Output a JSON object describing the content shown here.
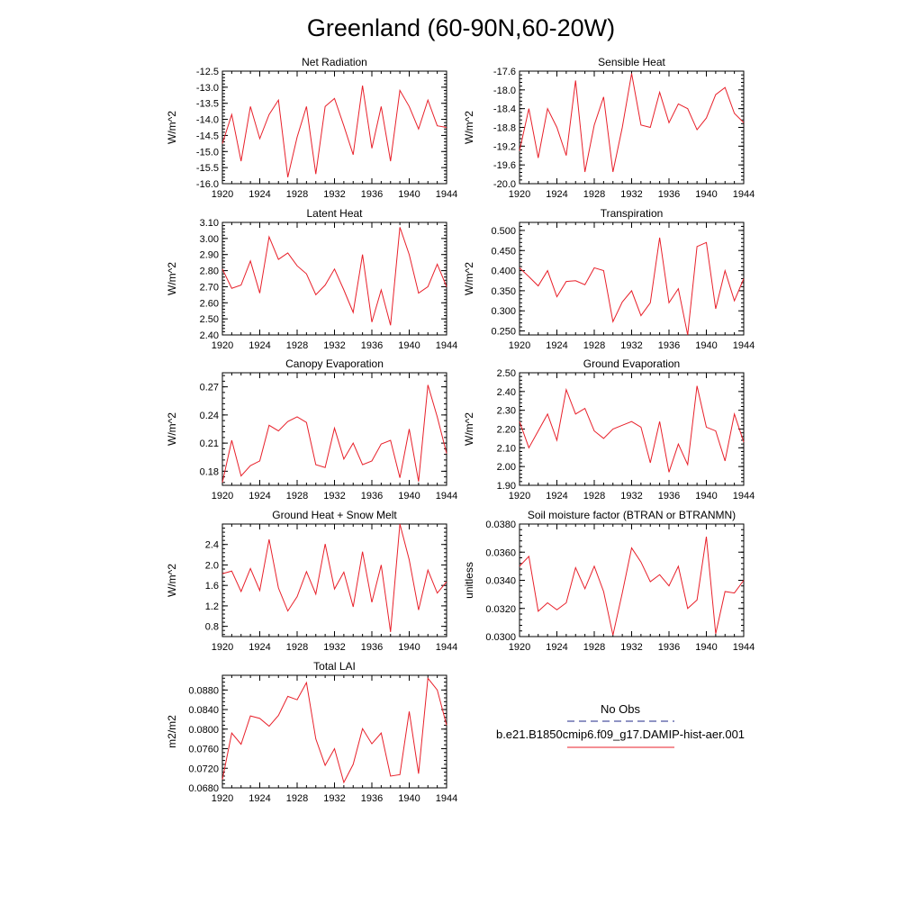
{
  "figure": {
    "title": "Greenland (60-90N,60-20W)"
  },
  "legend": {
    "entries": [
      {
        "label": "No Obs",
        "color": "#1f2a8a",
        "dash": true
      },
      {
        "label": "b.e21.B1850cmip6.f09_g17.DAMIP-hist-aer.001",
        "color": "#e8202a",
        "dash": false
      }
    ]
  },
  "chart_data": [
    {
      "type": "line",
      "title": "Net Radiation",
      "ylabel": "W/m^2",
      "xlim": [
        1920,
        1944
      ],
      "ylim": [
        -16.0,
        -12.5
      ],
      "xticks": [
        1920,
        1924,
        1928,
        1932,
        1936,
        1940,
        1944
      ],
      "yticks": [
        -16.0,
        -15.5,
        -15.0,
        -14.5,
        -14.0,
        -13.5,
        -13.0,
        -12.5
      ],
      "ytick_labels": [
        "-16.0",
        "-15.5",
        "-15.0",
        "-14.5",
        "-14.0",
        "-13.5",
        "-13.0",
        "-12.5"
      ],
      "series": [
        {
          "color": "#e8202a",
          "x": [
            1920,
            1921,
            1922,
            1923,
            1924,
            1925,
            1926,
            1927,
            1928,
            1929,
            1930,
            1931,
            1932,
            1933,
            1934,
            1935,
            1936,
            1937,
            1938,
            1939,
            1940,
            1941,
            1942,
            1943,
            1944
          ],
          "values": [
            -14.75,
            -13.85,
            -15.3,
            -13.6,
            -14.6,
            -13.85,
            -13.4,
            -15.8,
            -14.55,
            -13.6,
            -15.7,
            -13.6,
            -13.35,
            -14.2,
            -15.1,
            -12.95,
            -14.9,
            -13.6,
            -15.3,
            -13.1,
            -13.6,
            -14.3,
            -13.4,
            -14.2,
            -14.25
          ]
        }
      ]
    },
    {
      "type": "line",
      "title": "Sensible Heat",
      "ylabel": "W/m^2",
      "xlim": [
        1920,
        1944
      ],
      "ylim": [
        -20.0,
        -17.6
      ],
      "xticks": [
        1920,
        1924,
        1928,
        1932,
        1936,
        1940,
        1944
      ],
      "yticks": [
        -20.0,
        -19.6,
        -19.2,
        -18.8,
        -18.4,
        -18.0,
        -17.6
      ],
      "ytick_labels": [
        "-20.0",
        "-19.6",
        "-19.2",
        "-18.8",
        "-18.4",
        "-18.0",
        "-17.6"
      ],
      "series": [
        {
          "color": "#e8202a",
          "x": [
            1920,
            1921,
            1922,
            1923,
            1924,
            1925,
            1926,
            1927,
            1928,
            1929,
            1930,
            1931,
            1932,
            1933,
            1934,
            1935,
            1936,
            1937,
            1938,
            1939,
            1940,
            1941,
            1942,
            1943,
            1944
          ],
          "values": [
            -19.3,
            -18.4,
            -19.45,
            -18.4,
            -18.8,
            -19.4,
            -17.8,
            -19.75,
            -18.75,
            -18.15,
            -19.75,
            -18.8,
            -17.65,
            -18.75,
            -18.8,
            -18.05,
            -18.7,
            -18.3,
            -18.4,
            -18.85,
            -18.6,
            -18.1,
            -17.95,
            -18.5,
            -18.7
          ]
        }
      ]
    },
    {
      "type": "line",
      "title": "Latent Heat",
      "ylabel": "W/m^2",
      "xlim": [
        1920,
        1944
      ],
      "ylim": [
        2.4,
        3.1
      ],
      "xticks": [
        1920,
        1924,
        1928,
        1932,
        1936,
        1940,
        1944
      ],
      "yticks": [
        2.4,
        2.5,
        2.6,
        2.7,
        2.8,
        2.9,
        3.0,
        3.1
      ],
      "ytick_labels": [
        "2.40",
        "2.50",
        "2.60",
        "2.70",
        "2.80",
        "2.90",
        "3.00",
        "3.10"
      ],
      "series": [
        {
          "color": "#e8202a",
          "x": [
            1920,
            1921,
            1922,
            1923,
            1924,
            1925,
            1926,
            1927,
            1928,
            1929,
            1930,
            1931,
            1932,
            1933,
            1934,
            1935,
            1936,
            1937,
            1938,
            1939,
            1940,
            1941,
            1942,
            1943,
            1944
          ],
          "values": [
            2.81,
            2.69,
            2.71,
            2.86,
            2.66,
            3.01,
            2.87,
            2.91,
            2.83,
            2.78,
            2.65,
            2.71,
            2.81,
            2.68,
            2.54,
            2.9,
            2.48,
            2.68,
            2.46,
            3.07,
            2.9,
            2.66,
            2.7,
            2.84,
            2.7
          ]
        }
      ]
    },
    {
      "type": "line",
      "title": "Transpiration",
      "ylabel": "W/m^2",
      "xlim": [
        1920,
        1944
      ],
      "ylim": [
        0.24,
        0.52
      ],
      "xticks": [
        1920,
        1924,
        1928,
        1932,
        1936,
        1940,
        1944
      ],
      "yticks": [
        0.25,
        0.3,
        0.35,
        0.4,
        0.45,
        0.5
      ],
      "ytick_labels": [
        "0.250",
        "0.300",
        "0.350",
        "0.400",
        "0.450",
        "0.500"
      ],
      "series": [
        {
          "color": "#e8202a",
          "x": [
            1920,
            1921,
            1922,
            1923,
            1924,
            1925,
            1926,
            1927,
            1928,
            1929,
            1930,
            1931,
            1932,
            1933,
            1934,
            1935,
            1936,
            1937,
            1938,
            1939,
            1940,
            1941,
            1942,
            1943,
            1944
          ],
          "values": [
            0.407,
            0.385,
            0.362,
            0.4,
            0.335,
            0.373,
            0.375,
            0.365,
            0.407,
            0.4,
            0.273,
            0.322,
            0.35,
            0.288,
            0.32,
            0.482,
            0.32,
            0.355,
            0.24,
            0.46,
            0.47,
            0.305,
            0.4,
            0.325,
            0.38
          ]
        }
      ]
    },
    {
      "type": "line",
      "title": "Canopy Evaporation",
      "ylabel": "W/m^2",
      "xlim": [
        1920,
        1944
      ],
      "ylim": [
        0.165,
        0.285
      ],
      "xticks": [
        1920,
        1924,
        1928,
        1932,
        1936,
        1940,
        1944
      ],
      "yticks": [
        0.18,
        0.21,
        0.24,
        0.27
      ],
      "ytick_labels": [
        "0.18",
        "0.21",
        "0.24",
        "0.27"
      ],
      "series": [
        {
          "color": "#e8202a",
          "x": [
            1920,
            1921,
            1922,
            1923,
            1924,
            1925,
            1926,
            1927,
            1928,
            1929,
            1930,
            1931,
            1932,
            1933,
            1934,
            1935,
            1936,
            1937,
            1938,
            1939,
            1940,
            1941,
            1942,
            1943,
            1944
          ],
          "values": [
            0.168,
            0.213,
            0.175,
            0.186,
            0.191,
            0.229,
            0.223,
            0.233,
            0.238,
            0.232,
            0.187,
            0.184,
            0.226,
            0.193,
            0.21,
            0.187,
            0.191,
            0.209,
            0.213,
            0.173,
            0.225,
            0.169,
            0.272,
            0.238,
            0.199
          ]
        }
      ]
    },
    {
      "type": "line",
      "title": "Ground Evaporation",
      "ylabel": "W/m^2",
      "xlim": [
        1920,
        1944
      ],
      "ylim": [
        1.9,
        2.5
      ],
      "xticks": [
        1920,
        1924,
        1928,
        1932,
        1936,
        1940,
        1944
      ],
      "yticks": [
        1.9,
        2.0,
        2.1,
        2.2,
        2.3,
        2.4,
        2.5
      ],
      "ytick_labels": [
        "1.90",
        "2.00",
        "2.10",
        "2.20",
        "2.30",
        "2.40",
        "2.50"
      ],
      "series": [
        {
          "color": "#e8202a",
          "x": [
            1920,
            1921,
            1922,
            1923,
            1924,
            1925,
            1926,
            1927,
            1928,
            1929,
            1930,
            1931,
            1932,
            1933,
            1934,
            1935,
            1936,
            1937,
            1938,
            1939,
            1940,
            1941,
            1942,
            1943,
            1944
          ],
          "values": [
            2.24,
            2.1,
            2.19,
            2.28,
            2.14,
            2.41,
            2.28,
            2.31,
            2.19,
            2.15,
            2.2,
            2.22,
            2.24,
            2.21,
            2.02,
            2.24,
            1.97,
            2.12,
            2.01,
            2.43,
            2.21,
            2.19,
            2.03,
            2.28,
            2.13
          ]
        }
      ]
    },
    {
      "type": "line",
      "title": "Ground Heat + Snow Melt",
      "ylabel": "W/m^2",
      "xlim": [
        1920,
        1944
      ],
      "ylim": [
        0.6,
        2.8
      ],
      "xticks": [
        1920,
        1924,
        1928,
        1932,
        1936,
        1940,
        1944
      ],
      "yticks": [
        0.8,
        1.2,
        1.6,
        2.0,
        2.4
      ],
      "ytick_labels": [
        "0.8",
        "1.2",
        "1.6",
        "2.0",
        "2.4"
      ],
      "series": [
        {
          "color": "#e8202a",
          "x": [
            1920,
            1921,
            1922,
            1923,
            1924,
            1925,
            1926,
            1927,
            1928,
            1929,
            1930,
            1931,
            1932,
            1933,
            1934,
            1935,
            1936,
            1937,
            1938,
            1939,
            1940,
            1941,
            1942,
            1943,
            1944
          ],
          "values": [
            1.83,
            1.88,
            1.48,
            1.93,
            1.5,
            2.5,
            1.55,
            1.1,
            1.38,
            1.87,
            1.43,
            2.41,
            1.53,
            1.86,
            1.18,
            2.26,
            1.27,
            2.0,
            0.69,
            2.8,
            2.1,
            1.12,
            1.9,
            1.45,
            1.67
          ]
        }
      ]
    },
    {
      "type": "line",
      "title": "Soil moisture factor (BTRAN or BTRANMN)",
      "ylabel": "unitless",
      "xlim": [
        1920,
        1944
      ],
      "ylim": [
        0.03,
        0.038
      ],
      "xticks": [
        1920,
        1924,
        1928,
        1932,
        1936,
        1940,
        1944
      ],
      "yticks": [
        0.03,
        0.032,
        0.034,
        0.036,
        0.038
      ],
      "ytick_labels": [
        "0.0300",
        "0.0320",
        "0.0340",
        "0.0360",
        "0.0380"
      ],
      "series": [
        {
          "color": "#e8202a",
          "x": [
            1920,
            1921,
            1922,
            1923,
            1924,
            1925,
            1926,
            1927,
            1928,
            1929,
            1930,
            1931,
            1932,
            1933,
            1934,
            1935,
            1936,
            1937,
            1938,
            1939,
            1940,
            1941,
            1942,
            1943,
            1944
          ],
          "values": [
            0.035,
            0.0357,
            0.0318,
            0.0324,
            0.0319,
            0.0324,
            0.0349,
            0.0334,
            0.035,
            0.0332,
            0.0301,
            0.0331,
            0.0363,
            0.0353,
            0.0339,
            0.0344,
            0.0336,
            0.035,
            0.032,
            0.0326,
            0.0371,
            0.0302,
            0.0332,
            0.0331,
            0.034
          ]
        }
      ]
    },
    {
      "type": "line",
      "title": "Total LAI",
      "ylabel": "m2/m2",
      "xlim": [
        1920,
        1944
      ],
      "ylim": [
        0.068,
        0.091
      ],
      "xticks": [
        1920,
        1924,
        1928,
        1932,
        1936,
        1940,
        1944
      ],
      "yticks": [
        0.068,
        0.072,
        0.076,
        0.08,
        0.084,
        0.088
      ],
      "ytick_labels": [
        "0.0680",
        "0.0720",
        "0.0760",
        "0.0800",
        "0.0840",
        "0.0880"
      ],
      "series": [
        {
          "color": "#e8202a",
          "x": [
            1920,
            1921,
            1922,
            1923,
            1924,
            1925,
            1926,
            1927,
            1928,
            1929,
            1930,
            1931,
            1932,
            1933,
            1934,
            1935,
            1936,
            1937,
            1938,
            1939,
            1940,
            1941,
            1942,
            1943,
            1944
          ],
          "values": [
            0.0697,
            0.0792,
            0.0769,
            0.0827,
            0.0822,
            0.0806,
            0.0828,
            0.0867,
            0.086,
            0.0895,
            0.078,
            0.0726,
            0.076,
            0.0691,
            0.0728,
            0.0801,
            0.077,
            0.0792,
            0.0704,
            0.0707,
            0.0836,
            0.0709,
            0.0904,
            0.088,
            0.0808
          ]
        }
      ]
    }
  ]
}
